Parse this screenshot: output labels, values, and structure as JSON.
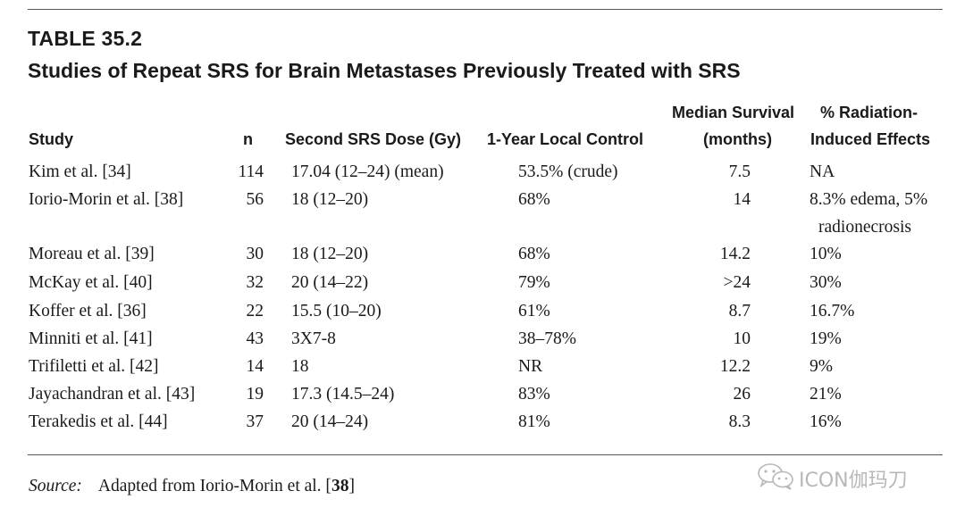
{
  "table": {
    "label": "TABLE 35.2",
    "title": "Studies of Repeat SRS for Brain Metastases Previously Treated with SRS",
    "headers": {
      "study": "Study",
      "n": "n",
      "dose": "Second SRS Dose (Gy)",
      "control": "1-Year Local Control",
      "survival_line1": "Median Survival",
      "survival_line2": "(months)",
      "radiation_line1": "% Radiation-",
      "radiation_line2": "Induced Effects"
    },
    "rows": [
      {
        "study": "Kim et al. [34]",
        "n": "114",
        "dose": "17.04 (12–24) (mean)",
        "control": "53.5% (crude)",
        "survival": "7.5",
        "radiation": "NA",
        "radiation_cont": ""
      },
      {
        "study": "Iorio-Morin et al. [38]",
        "n": "56",
        "dose": "18 (12–20)",
        "control": "68%",
        "survival": "14",
        "radiation": "8.3% edema, 5%",
        "radiation_cont": "radionecrosis"
      },
      {
        "study": "Moreau et al. [39]",
        "n": "30",
        "dose": "18 (12–20)",
        "control": "68%",
        "survival": "14.2",
        "radiation": "10%",
        "radiation_cont": ""
      },
      {
        "study": "McKay et al. [40]",
        "n": "32",
        "dose": "20 (14–22)",
        "control": "79%",
        "survival": ">24",
        "radiation": "30%",
        "radiation_cont": ""
      },
      {
        "study": "Koffer et al. [36]",
        "n": "22",
        "dose": "15.5 (10–20)",
        "control": "61%",
        "survival": "8.7",
        "radiation": "16.7%",
        "radiation_cont": ""
      },
      {
        "study": "Minniti et al. [41]",
        "n": "43",
        "dose": "3X7-8",
        "control": "38–78%",
        "survival": "10",
        "radiation": "19%",
        "radiation_cont": ""
      },
      {
        "study": "Trifiletti et al. [42]",
        "n": "14",
        "dose": "18",
        "control": "NR",
        "survival": "12.2",
        "radiation": "9%",
        "radiation_cont": ""
      },
      {
        "study": "Jayachandran et al. [43]",
        "n": "19",
        "dose": "17.3 (14.5–24)",
        "control": "83%",
        "survival": "26",
        "radiation": "21%",
        "radiation_cont": ""
      },
      {
        "study": "Terakedis et al. [44]",
        "n": "37",
        "dose": "20 (14–24)",
        "control": "81%",
        "survival": "8.3",
        "radiation": "16%",
        "radiation_cont": ""
      }
    ]
  },
  "source": {
    "label": "Source:",
    "text": "Adapted from Iorio-Morin et al. [",
    "ref": "38",
    "close": "]"
  },
  "watermark": {
    "icon": "wechat-icon",
    "text": "ICON伽玛刀"
  }
}
